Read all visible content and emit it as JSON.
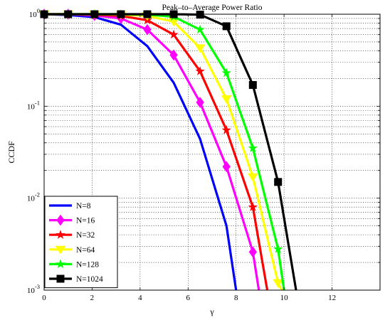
{
  "chart_data": {
    "type": "line",
    "title": "Peak–to–Average Power Ratio",
    "xlabel": "γ",
    "ylabel": "CCDF",
    "xlim": [
      0,
      14
    ],
    "ylim": [
      0.001,
      1
    ],
    "yscale": "log",
    "grid": true,
    "legend_position": "bottom-left",
    "x_ticks": [
      "0",
      "2",
      "4",
      "6",
      "8",
      "10",
      "12"
    ],
    "y_ticks": [
      {
        "base": "10",
        "exp": "0"
      },
      {
        "base": "10",
        "exp": "-1"
      },
      {
        "base": "10",
        "exp": "-2"
      },
      {
        "base": "10",
        "exp": "-3"
      }
    ],
    "series": [
      {
        "name": "N=8",
        "color": "#0000ff",
        "marker": "none",
        "x": [
          0,
          1.0,
          2.1,
          3.2,
          4.3,
          5.4,
          6.5,
          7.6,
          8.0
        ],
        "y": [
          1.0,
          0.98,
          0.93,
          0.77,
          0.45,
          0.18,
          0.044,
          0.005,
          0.001
        ]
      },
      {
        "name": "N=16",
        "color": "#ff00ff",
        "marker": "diamond",
        "x": [
          0,
          1.0,
          2.1,
          3.2,
          4.3,
          5.4,
          6.5,
          7.6,
          8.7,
          8.95
        ],
        "y": [
          1.0,
          1.0,
          0.97,
          0.9,
          0.68,
          0.36,
          0.11,
          0.022,
          0.0026,
          0.001
        ]
      },
      {
        "name": "N=32",
        "color": "#ff0000",
        "marker": "star",
        "x": [
          0,
          1.0,
          2.1,
          3.2,
          4.3,
          5.4,
          6.5,
          7.6,
          8.7,
          9.3
        ],
        "y": [
          1.0,
          1.0,
          0.99,
          0.96,
          0.86,
          0.6,
          0.24,
          0.055,
          0.008,
          0.001
        ]
      },
      {
        "name": "N=64",
        "color": "#ffff00",
        "marker": "triangle-down",
        "x": [
          0,
          1.0,
          2.1,
          3.2,
          4.3,
          5.4,
          6.5,
          7.6,
          8.7,
          9.75,
          9.9
        ],
        "y": [
          1.0,
          1.0,
          1.0,
          0.99,
          0.96,
          0.83,
          0.43,
          0.12,
          0.017,
          0.0012,
          0.001
        ]
      },
      {
        "name": "N=128",
        "color": "#00ff00",
        "marker": "star",
        "x": [
          0,
          1.0,
          2.1,
          3.2,
          4.3,
          5.4,
          6.5,
          7.6,
          8.7,
          9.75,
          10.0
        ],
        "y": [
          1.0,
          1.0,
          1.0,
          1.0,
          0.99,
          0.94,
          0.68,
          0.23,
          0.035,
          0.0028,
          0.001
        ]
      },
      {
        "name": "N=1024",
        "color": "#000000",
        "marker": "square",
        "x": [
          0,
          1.0,
          2.1,
          3.2,
          4.3,
          5.4,
          6.5,
          7.6,
          8.7,
          9.75,
          10.5
        ],
        "y": [
          1.0,
          1.0,
          1.0,
          1.0,
          1.0,
          1.0,
          0.99,
          0.74,
          0.17,
          0.015,
          0.001
        ]
      }
    ]
  }
}
